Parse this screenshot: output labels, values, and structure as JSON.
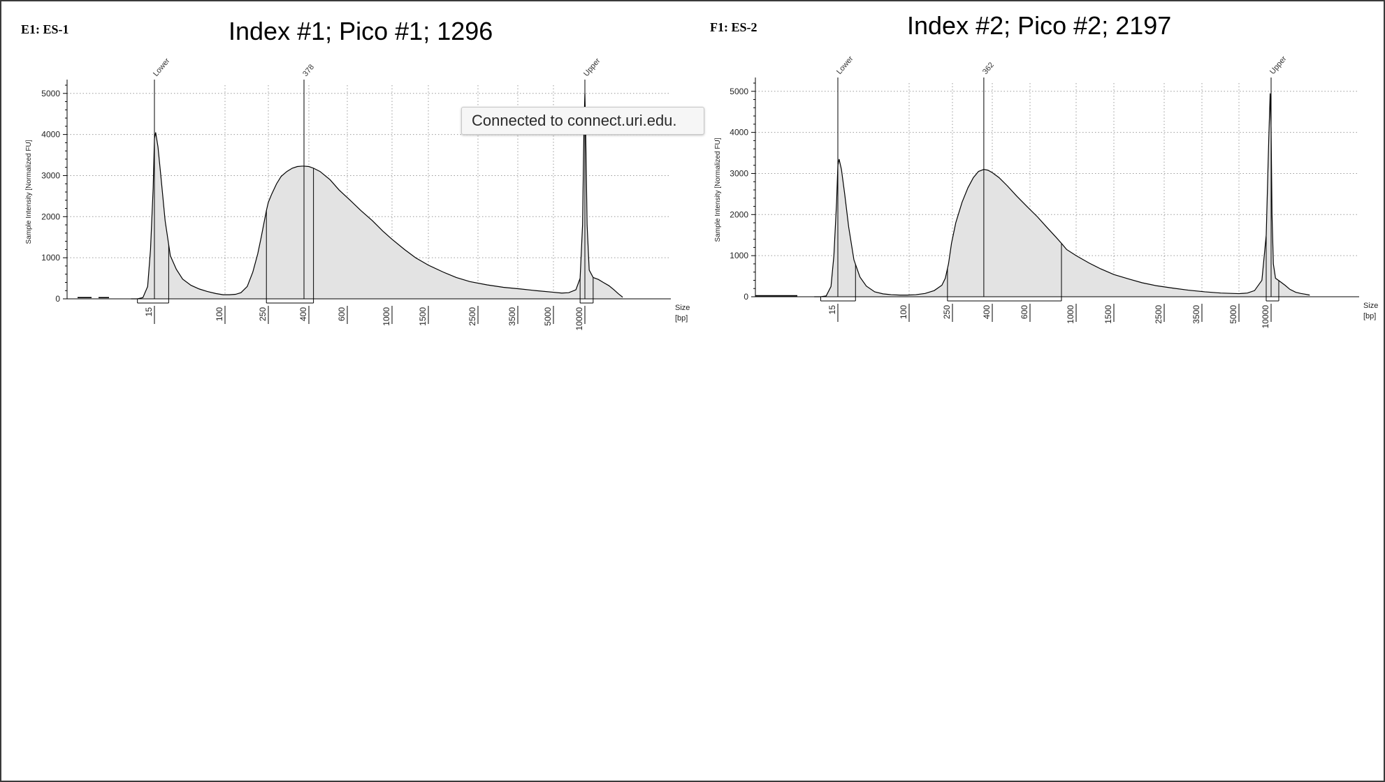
{
  "panels": [
    {
      "sample_label": "E1: ES-1",
      "title": "Index #1; Pico #1; 1296"
    },
    {
      "sample_label": "F1: ES-2",
      "title": "Index #2; Pico #2; 2197"
    }
  ],
  "tooltip": {
    "text": "Connected to connect.uri.edu."
  },
  "colors": {
    "fill": "#e3e3e3",
    "line": "#000000",
    "grid": "#9a9a9a",
    "tooltip_bg": "#f6f6f6"
  },
  "chart_data": [
    {
      "type": "area",
      "ylabel": "Sample Intensity [Normalized FU]",
      "xlabel": "Size\n[bp]",
      "y_ticks": [
        0,
        1000,
        2000,
        3000,
        4000,
        5000
      ],
      "ylim": [
        0,
        5200
      ],
      "x_tick_labels": [
        "15",
        "100",
        "250",
        "400",
        "600",
        "1000",
        "1500",
        "2500",
        "3500",
        "5000",
        "10000"
      ],
      "peak_labels": [
        "Lower",
        "378",
        "Upper"
      ],
      "x_scale": "log (bp)",
      "grid": true,
      "trace": {
        "size_bp": [
          8,
          9.5,
          11,
          12.5,
          13.5,
          14.5,
          15,
          15.5,
          16.5,
          18,
          20,
          23,
          27,
          32,
          40,
          50,
          62,
          78,
          95,
          110,
          125,
          140,
          160,
          180,
          200,
          215,
          230,
          240,
          250,
          260,
          275,
          290,
          310,
          330,
          350,
          370,
          378,
          400,
          420,
          450,
          500,
          550,
          620,
          700,
          800,
          900,
          1000,
          1150,
          1300,
          1500,
          1750,
          2000,
          2300,
          2700,
          3100,
          3600,
          4200,
          5000,
          6000,
          7000,
          8200,
          9000,
          9500,
          9800,
          10000,
          10200,
          10500,
          11000,
          12000,
          13500,
          15000,
          17000,
          19000,
          21000,
          23000
        ],
        "intensity": [
          0,
          0,
          30,
          300,
          1200,
          2700,
          3900,
          4050,
          3700,
          2900,
          1900,
          1050,
          720,
          480,
          330,
          240,
          180,
          130,
          100,
          100,
          110,
          150,
          300,
          650,
          1100,
          1500,
          1900,
          2150,
          2350,
          2550,
          2800,
          2980,
          3100,
          3180,
          3220,
          3230,
          3230,
          3220,
          3180,
          3100,
          2900,
          2650,
          2400,
          2150,
          1900,
          1650,
          1450,
          1200,
          1000,
          820,
          650,
          520,
          420,
          340,
          280,
          240,
          200,
          160,
          140,
          150,
          220,
          500,
          1800,
          4200,
          5000,
          3900,
          1800,
          700,
          520,
          470,
          400,
          320,
          220,
          120,
          40
        ],
        "pre_segments": [
          {
            "from": 1.5,
            "to": 3.5,
            "value": 30
          },
          {
            "from": 4.5,
            "to": 6,
            "value": 30
          }
        ]
      },
      "markers": [
        {
          "label": "Lower",
          "size_bp": 15
        },
        {
          "label": "378",
          "size_bp": 378
        },
        {
          "label": "Upper",
          "size_bp": 10000
        }
      ],
      "regions": [
        {
          "from_bp": 9.5,
          "to_bp": 22,
          "peak_bp": 15
        },
        {
          "from_bp": 240,
          "to_bp": 420,
          "peak_bp": 378
        },
        {
          "from_bp": 9000,
          "to_bp": 12000,
          "peak_bp": 10000
        }
      ]
    },
    {
      "type": "area",
      "ylabel": "Sample Intensity [Normalized FU]",
      "xlabel": "Size\n[bp]",
      "y_ticks": [
        0,
        1000,
        2000,
        3000,
        4000,
        5000
      ],
      "ylim": [
        0,
        5200
      ],
      "x_tick_labels": [
        "15",
        "100",
        "250",
        "400",
        "600",
        "1000",
        "1500",
        "2500",
        "3500",
        "5000",
        "10000"
      ],
      "peak_labels": [
        "Lower",
        "362",
        "Upper"
      ],
      "x_scale": "log (bp)",
      "grid": true,
      "trace": {
        "size_bp": [
          8,
          9.5,
          11,
          12.5,
          13.5,
          14.5,
          15,
          15.5,
          16.5,
          18,
          20,
          23,
          27,
          32,
          40,
          50,
          62,
          78,
          95,
          115,
          140,
          170,
          200,
          215,
          230,
          245,
          260,
          280,
          300,
          320,
          340,
          362,
          380,
          400,
          430,
          470,
          520,
          580,
          650,
          720,
          800,
          850,
          900,
          1000,
          1150,
          1300,
          1500,
          1750,
          2000,
          2300,
          2700,
          3100,
          3600,
          4200,
          5000,
          6000,
          7000,
          8200,
          9000,
          9500,
          9800,
          10000,
          10200,
          10500,
          11000,
          12000,
          13500,
          15000,
          17000,
          19000,
          21000,
          23000
        ],
        "intensity": [
          0,
          0,
          20,
          250,
          1000,
          2300,
          3200,
          3350,
          3100,
          2500,
          1700,
          900,
          480,
          260,
          120,
          70,
          50,
          40,
          40,
          50,
          80,
          150,
          280,
          450,
          800,
          1300,
          1800,
          2300,
          2650,
          2900,
          3050,
          3100,
          3080,
          3020,
          2900,
          2700,
          2450,
          2200,
          1950,
          1700,
          1450,
          1300,
          1150,
          1000,
          820,
          680,
          540,
          430,
          340,
          270,
          210,
          160,
          120,
          90,
          75,
          90,
          150,
          400,
          1500,
          3800,
          4950,
          4100,
          2000,
          800,
          450,
          380,
          280,
          180,
          110,
          80,
          60,
          40
        ],
        "pre_segments": [
          {
            "from": 0,
            "to": 6,
            "value": 25
          }
        ]
      },
      "markers": [
        {
          "label": "Lower",
          "size_bp": 15
        },
        {
          "label": "362",
          "size_bp": 362
        },
        {
          "label": "Upper",
          "size_bp": 10000
        }
      ],
      "regions": [
        {
          "from_bp": 9.5,
          "to_bp": 24,
          "peak_bp": 15
        },
        {
          "from_bp": 225,
          "to_bp": 850,
          "peak_bp": 362
        },
        {
          "from_bp": 9000,
          "to_bp": 11800,
          "peak_bp": 10000
        }
      ]
    }
  ]
}
